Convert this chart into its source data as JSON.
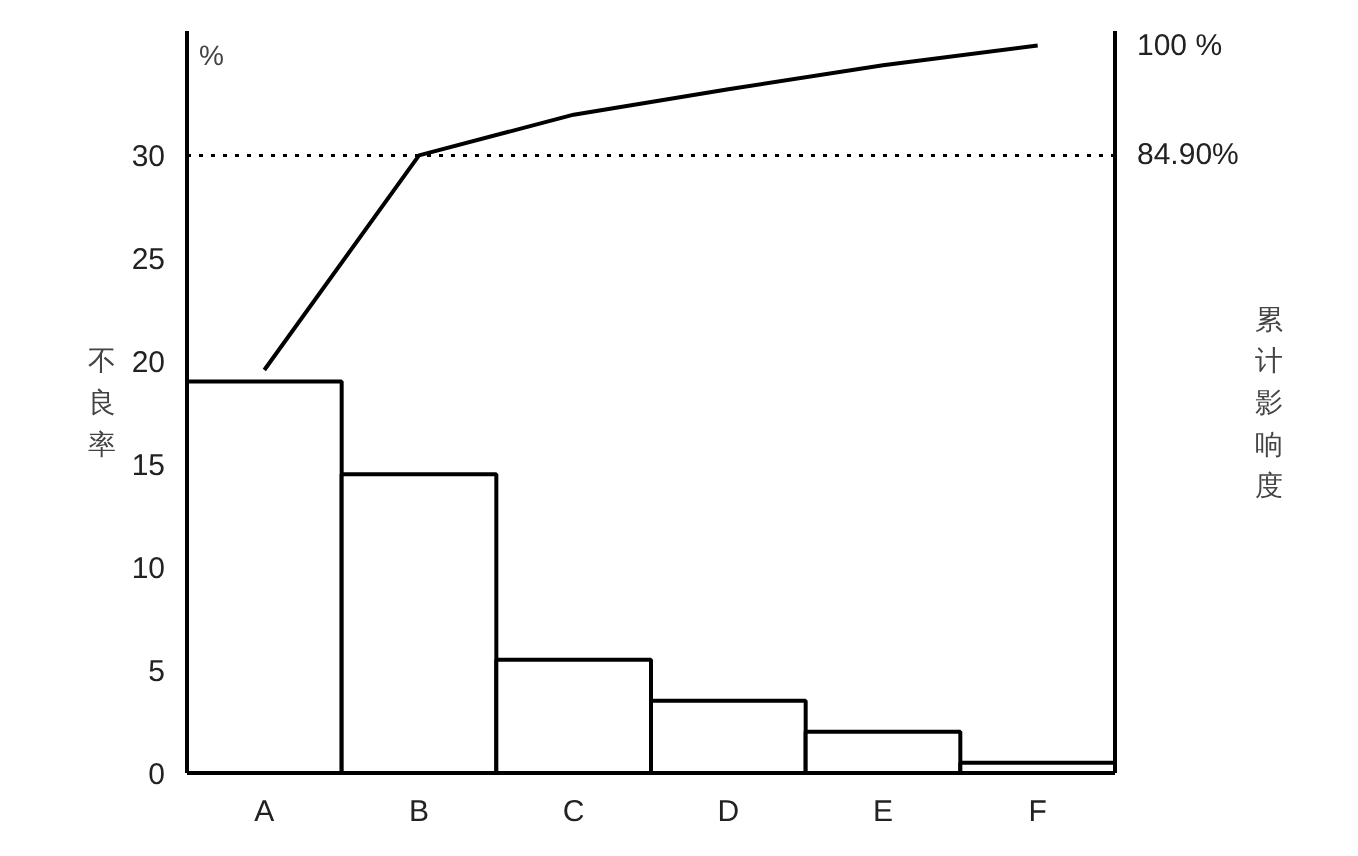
{
  "chart_data": {
    "type": "bar",
    "categories": [
      "A",
      "B",
      "C",
      "D",
      "E",
      "F"
    ],
    "ylabel": "不良率",
    "y2label": "累计影响度",
    "annotations": [
      "%"
    ],
    "series": [
      {
        "color": "#ffffff",
        "values": [
          19,
          14.5,
          5.5,
          3.5,
          2,
          0.5
        ]
      },
      {
        "type": "line",
        "axis": "y2",
        "color": "#000000",
        "values": [
          55.4,
          84.9,
          90.5,
          94,
          97.3,
          100
        ]
      }
    ],
    "ylim": [
      0,
      36
    ],
    "yticks": [
      0,
      5,
      10,
      15,
      20,
      25,
      30
    ],
    "y2lim": [
      0,
      102
    ],
    "y2ticks": [
      {
        "value": 84.9,
        "label": "84.90%"
      },
      {
        "value": 100,
        "label": "100 %"
      }
    ],
    "ref_lines": [
      {
        "axis": "y2",
        "value": 84.9,
        "line_style": "dotted",
        "color": "#000000"
      }
    ],
    "grid": false
  }
}
